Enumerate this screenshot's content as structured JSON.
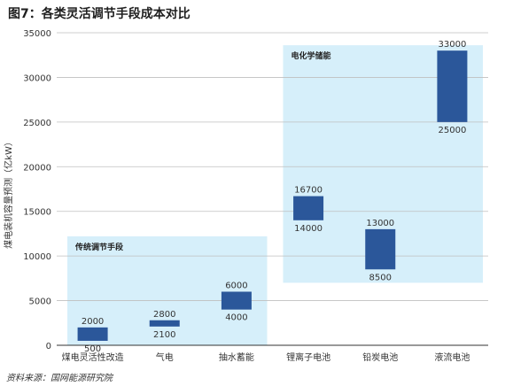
{
  "title": "图7：各类灵活调节手段成本对比",
  "source": "资料来源：国网能源研究院",
  "colors": {
    "bar": "#2b579a",
    "group_background": "#d6effa",
    "grid": "#bfbfbf",
    "axis": "#333333",
    "text": "#333333"
  },
  "chart_data": {
    "type": "bar",
    "subtype": "floating-range",
    "title": "",
    "xlabel": "",
    "ylabel": "煤电装机容量预测（亿kW）",
    "ylim": [
      0,
      35000
    ],
    "yticks": [
      0,
      5000,
      10000,
      15000,
      20000,
      25000,
      30000,
      35000
    ],
    "grid": true,
    "categories": [
      "煤电灵活性改造",
      "气电",
      "抽水蓄能",
      "锂离子电池",
      "铅炭电池",
      "液流电池"
    ],
    "series": [
      {
        "low": [
          500,
          2100,
          4000,
          14000,
          8500,
          25000
        ],
        "high": [
          2000,
          2800,
          6000,
          16700,
          13000,
          33000
        ]
      }
    ],
    "groups": [
      {
        "label": "传统调节手段",
        "categories": [
          "煤电灵活性改造",
          "气电",
          "抽水蓄能"
        ],
        "ymin": 0,
        "ymax": 12200
      },
      {
        "label": "电化学储能",
        "categories": [
          "锂离子电池",
          "铅炭电池",
          "液流电池"
        ],
        "ymin": 7000,
        "ymax": 33600
      }
    ]
  }
}
